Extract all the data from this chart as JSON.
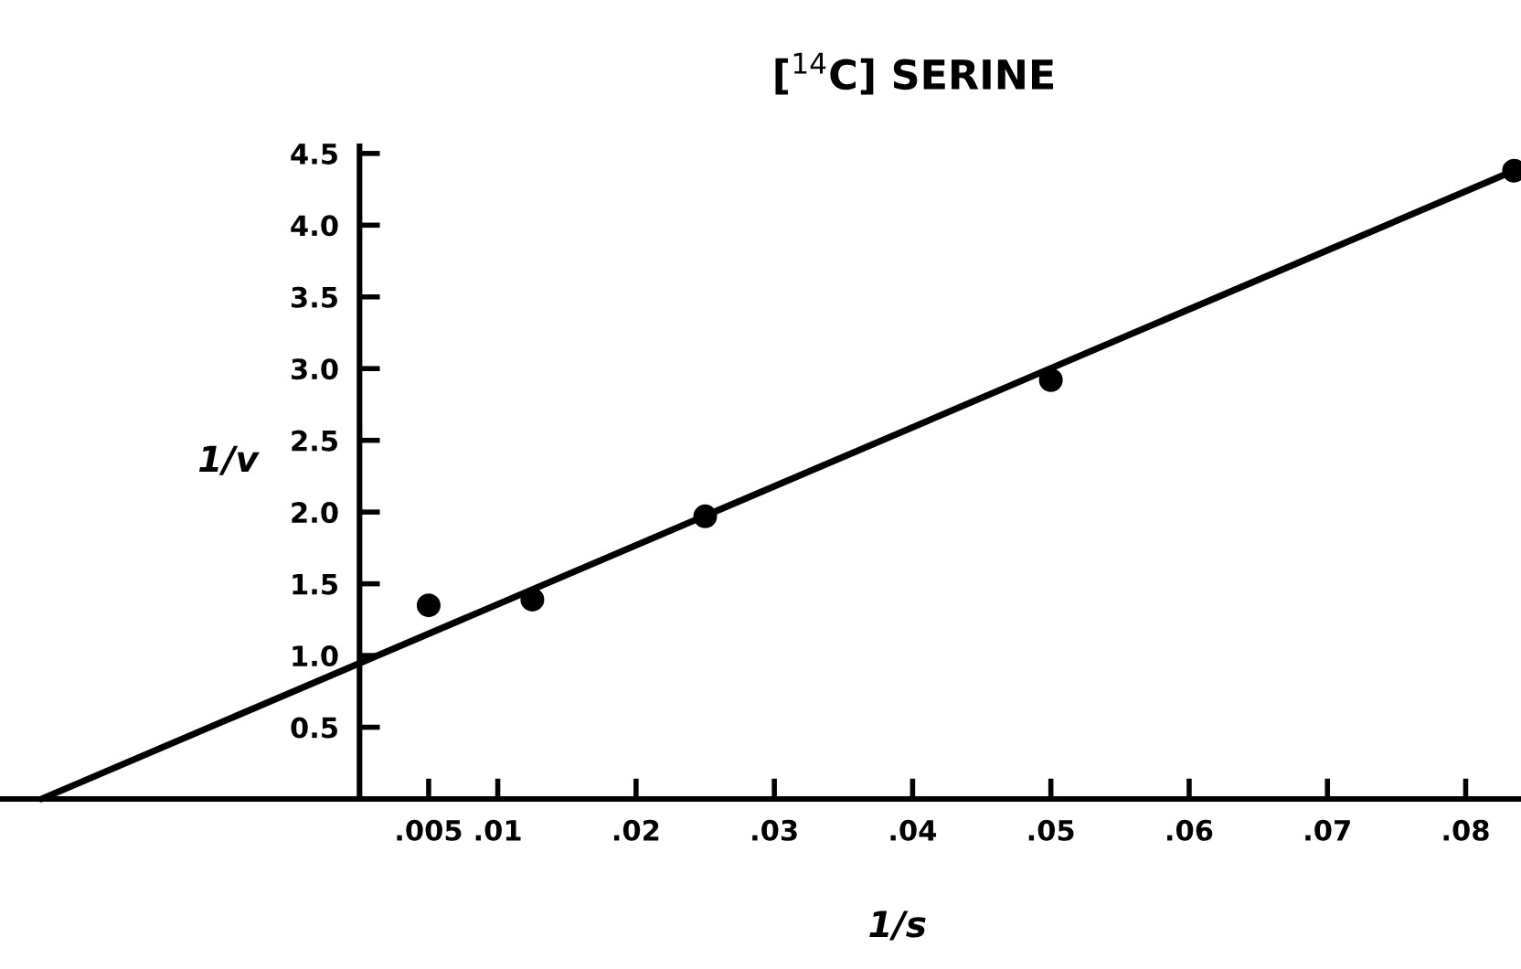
{
  "chart_data": {
    "type": "scatter",
    "title": "[$^{14}$C] SERINE",
    "xlabel": "1/s",
    "ylabel": "1/v",
    "series": [
      {
        "color": "#000000",
        "marker": "circle",
        "x": [
          0.005,
          0.0125,
          0.025,
          0.05,
          0.0835
        ],
        "values": [
          1.35,
          1.39,
          1.97,
          2.92,
          4.38
        ]
      },
      {
        "type": "line",
        "color": "#000000",
        "marker": "none",
        "line_style": "solid",
        "x": [
          -0.023,
          0.0835
        ],
        "values": [
          0,
          4.38
        ]
      }
    ],
    "xlim": [
      -0.026,
      0.084
    ],
    "ylim": [
      0,
      4.55
    ],
    "xticks": [
      {
        "value": 0.005,
        "label": ".005"
      },
      {
        "value": 0.01,
        "label": ".01"
      },
      {
        "value": 0.02,
        "label": ".02"
      },
      {
        "value": 0.03,
        "label": ".03"
      },
      {
        "value": 0.04,
        "label": ".04"
      },
      {
        "value": 0.05,
        "label": ".05"
      },
      {
        "value": 0.06,
        "label": ".06"
      },
      {
        "value": 0.07,
        "label": ".07"
      },
      {
        "value": 0.08,
        "label": ".08"
      }
    ],
    "yticks": [
      0.5,
      {
        "value": 1,
        "label": "1.0"
      },
      1.5,
      {
        "value": 2,
        "label": "2.0"
      },
      2.5,
      {
        "value": 3,
        "label": "3.0"
      },
      3.5,
      {
        "value": 4,
        "label": "4.0"
      },
      4.5
    ],
    "grid": false,
    "legend": false
  }
}
